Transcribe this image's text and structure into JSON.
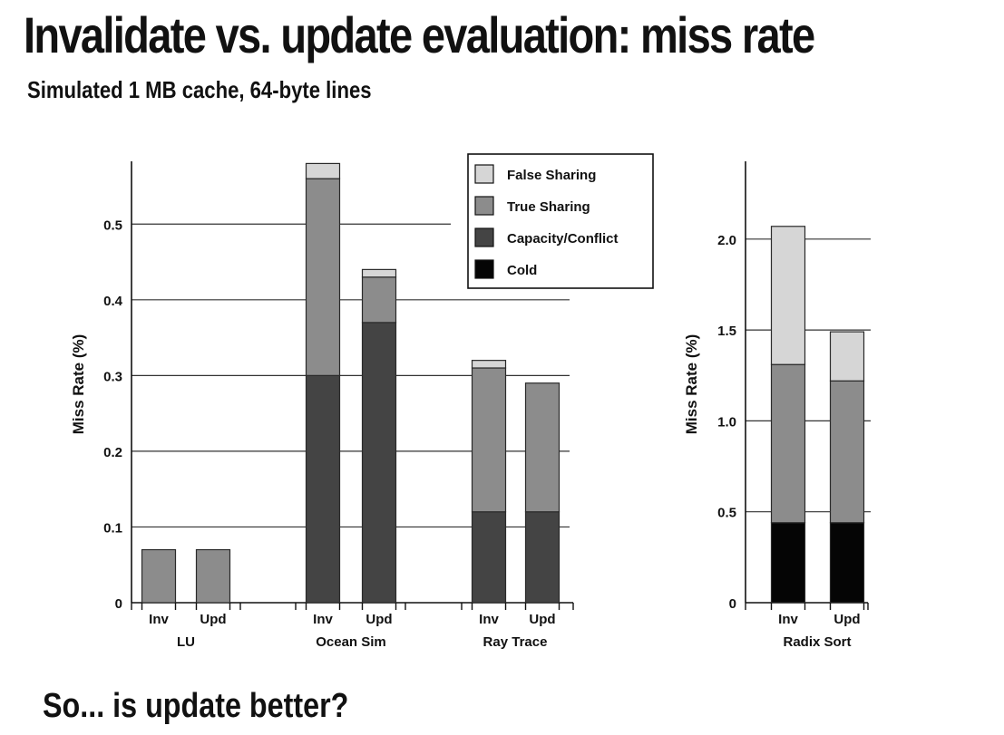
{
  "slide": {
    "title": "Invalidate vs. update evaluation: miss rate",
    "subtitle": "Simulated 1 MB cache, 64-byte lines",
    "question": "So... is update better?"
  },
  "legend_placement": "top-right",
  "colors": {
    "Cold": "#050505",
    "Capacity/Conflict": "#444444",
    "True Sharing": "#8c8c8c",
    "False Sharing": "#d6d6d6",
    "gridline": "#333333",
    "bar_outline": "#2a2a2a"
  },
  "chart_data": [
    {
      "type": "bar",
      "stacked": true,
      "ylabel": "Miss Rate (%)",
      "ylim": [
        0,
        0.58
      ],
      "yticks": [
        0,
        0.1,
        0.2,
        0.3,
        0.4,
        0.5
      ],
      "ytick_labels": [
        "0",
        "0.1",
        "0.2",
        "0.3",
        "0.4",
        "0.5"
      ],
      "grid": true,
      "groups": [
        {
          "name": "LU",
          "categories": [
            "Inv",
            "Upd"
          ]
        },
        {
          "name": "Ocean Sim",
          "categories": [
            "Inv",
            "Upd"
          ]
        },
        {
          "name": "Ray Trace",
          "categories": [
            "Inv",
            "Upd"
          ]
        }
      ],
      "series": [
        {
          "name": "Cold",
          "values": [
            0,
            0,
            0,
            0,
            0,
            0
          ]
        },
        {
          "name": "Capacity/Conflict",
          "values": [
            0,
            0,
            0.3,
            0.37,
            0.12,
            0.12
          ]
        },
        {
          "name": "True Sharing",
          "values": [
            0.07,
            0.07,
            0.26,
            0.06,
            0.19,
            0.17
          ]
        },
        {
          "name": "False Sharing",
          "values": [
            0,
            0,
            0.02,
            0.01,
            0.01,
            0
          ]
        }
      ],
      "legend": [
        "False Sharing",
        "True Sharing",
        "Capacity/Conflict",
        "Cold"
      ]
    },
    {
      "type": "bar",
      "stacked": true,
      "ylabel": "Miss Rate (%)",
      "ylim": [
        0,
        2.35
      ],
      "yticks": [
        0,
        0.5,
        1.0,
        1.5,
        2.0
      ],
      "ytick_labels": [
        "0",
        "0.5",
        "1.0",
        "1.5",
        "2.0"
      ],
      "grid": true,
      "groups": [
        {
          "name": "Radix Sort",
          "categories": [
            "Inv",
            "Upd"
          ]
        }
      ],
      "series": [
        {
          "name": "Cold",
          "values": [
            0.44,
            0.44
          ]
        },
        {
          "name": "Capacity/Conflict",
          "values": [
            0,
            0
          ]
        },
        {
          "name": "True Sharing",
          "values": [
            0.87,
            0.78
          ]
        },
        {
          "name": "False Sharing",
          "values": [
            0.76,
            0.27
          ]
        }
      ]
    }
  ]
}
